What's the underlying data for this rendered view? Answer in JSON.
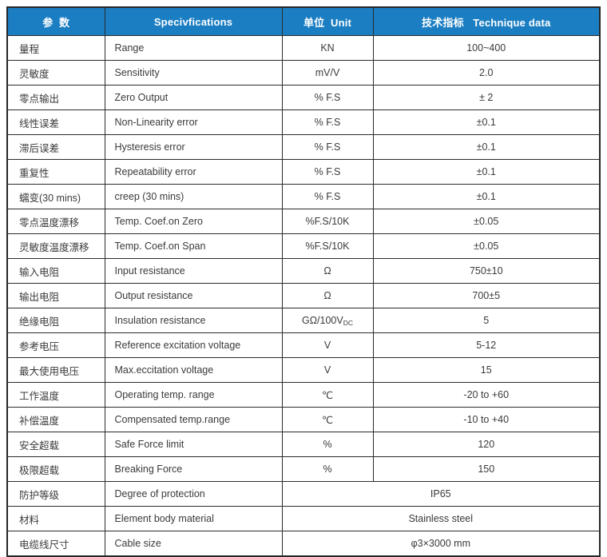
{
  "header": {
    "col_param": "参  数",
    "col_spec": "Specivfications",
    "col_unit": "单位  Unit",
    "col_data": "技术指标   Technique data"
  },
  "colors": {
    "header_bg": "#1b7ec2",
    "header_text": "#ffffff",
    "body_text": "#3a3a3a",
    "border": "#2b2b2b"
  },
  "rows": [
    {
      "param": "量程",
      "spec": "Range",
      "unit": "KN",
      "value": "100~400"
    },
    {
      "param": "灵敏度",
      "spec": "Sensitivity",
      "unit": "mV/V",
      "value": "2.0"
    },
    {
      "param": "零点输出",
      "spec": "Zero Output",
      "unit": "% F.S",
      "value": "± 2"
    },
    {
      "param": "线性误差",
      "spec": "Non-Linearity error",
      "unit": "% F.S",
      "value": "±0.1"
    },
    {
      "param": "滞后误差",
      "spec": "Hysteresis error",
      "unit": "% F.S",
      "value": "±0.1"
    },
    {
      "param": "重复性",
      "spec": "Repeatability error",
      "unit": "% F.S",
      "value": "±0.1"
    },
    {
      "param": "蠕变(30 mins)",
      "spec": "creep (30 mins)",
      "unit": "% F.S",
      "value": "±0.1"
    },
    {
      "param": "零点温度漂移",
      "spec": "Temp. Coef.on Zero",
      "unit": "%F.S/10K",
      "value": "±0.05"
    },
    {
      "param": "灵敏度温度漂移",
      "spec": "Temp. Coef.on Span",
      "unit": "%F.S/10K",
      "value": "±0.05"
    },
    {
      "param": "输入电阻",
      "spec": "Input resistance",
      "unit": "Ω",
      "value": "750±10"
    },
    {
      "param": "输出电阻",
      "spec": "Output resistance",
      "unit": "Ω",
      "value": "700±5"
    },
    {
      "param": "绝缘电阻",
      "spec": "Insulation resistance",
      "unit": "GΩ/100V",
      "unit_sub": "DC",
      "value": "5"
    },
    {
      "param": "参考电压",
      "spec": "Reference excitation voltage",
      "unit": "V",
      "value": "5-12"
    },
    {
      "param": "最大使用电压",
      "spec": "Max.eccitation voltage",
      "unit": "V",
      "value": "15"
    },
    {
      "param": "工作温度",
      "spec": "Operating temp. range",
      "unit": "℃",
      "value": "-20 to +60"
    },
    {
      "param": "补偿温度",
      "spec": "Compensated temp.range",
      "unit": "℃",
      "value": "-10 to +40"
    },
    {
      "param": "安全超载",
      "spec": "Safe Force limit",
      "unit": "%",
      "value": "120"
    },
    {
      "param": "极限超载",
      "spec": "Breaking Force",
      "unit": "%",
      "value": "150"
    },
    {
      "param": "防护等级",
      "spec": "Degree of protection",
      "merged": true,
      "value": "IP65"
    },
    {
      "param": "材料",
      "spec": "Element body material",
      "merged": true,
      "value": "Stainless steel"
    },
    {
      "param": "电缆线尺寸",
      "spec": "Cable size",
      "merged": true,
      "value": "φ3×3000 mm"
    }
  ]
}
